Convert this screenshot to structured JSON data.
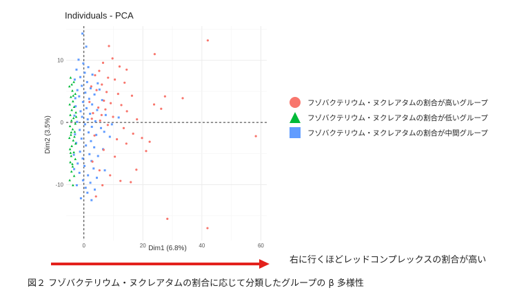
{
  "chart_data": {
    "type": "scatter",
    "title": "Individuals - PCA",
    "xlabel": "Dim1 (6.8%)",
    "ylabel": "Dim2 (3.5%)",
    "xlim": [
      -6,
      62
    ],
    "ylim": [
      -19,
      15.5
    ],
    "xticks": [
      0,
      20,
      40,
      60
    ],
    "yticks": [
      -10,
      0,
      10
    ],
    "grid": true,
    "reference_lines": {
      "x": 0,
      "y": 0
    },
    "legend_position": "right",
    "series": [
      {
        "name": "フゾバクテリウム・ヌクレアタムの割合が高いグループ",
        "marker": "circle",
        "color": "#F8766D",
        "points": [
          [
            42,
            13.2
          ],
          [
            24,
            11
          ],
          [
            8.5,
            12.3
          ],
          [
            9.7,
            10.3
          ],
          [
            6.5,
            9.6
          ],
          [
            12.1,
            9
          ],
          [
            14.5,
            8.5
          ],
          [
            5.2,
            8.3
          ],
          [
            3.8,
            7.6
          ],
          [
            8.2,
            7.2
          ],
          [
            10.5,
            6.9
          ],
          [
            13.8,
            6.4
          ],
          [
            6.1,
            6.1
          ],
          [
            2.5,
            5.8
          ],
          [
            4.3,
            5.2
          ],
          [
            7.7,
            4.9
          ],
          [
            11.6,
            4.6
          ],
          [
            16.3,
            4.3
          ],
          [
            27.5,
            4.2
          ],
          [
            33.5,
            3.9
          ],
          [
            6.8,
            3.5
          ],
          [
            1.9,
            3.3
          ],
          [
            9.1,
            3.1
          ],
          [
            12.7,
            2.8
          ],
          [
            23.8,
            2.9
          ],
          [
            4.9,
            2.4
          ],
          [
            7.3,
            2.1
          ],
          [
            14.6,
            1.8
          ],
          [
            26.2,
            2.2
          ],
          [
            3.1,
            1.5
          ],
          [
            6,
            1.2
          ],
          [
            9.9,
            0.9
          ],
          [
            18,
            0.5
          ],
          [
            2.7,
            0.6
          ],
          [
            5.5,
            0.3
          ],
          [
            8.1,
            -0.4
          ],
          [
            13.5,
            -0.9
          ],
          [
            58.3,
            -2.2
          ],
          [
            16.7,
            -1.8
          ],
          [
            19.7,
            -2.5
          ],
          [
            11.2,
            -2.7
          ],
          [
            22.3,
            -3.1
          ],
          [
            14.4,
            -3.4
          ],
          [
            3.6,
            -2.1
          ],
          [
            6.7,
            -4.4
          ],
          [
            21.1,
            -4.6
          ],
          [
            10.5,
            -5.5
          ],
          [
            2.9,
            -6.3
          ],
          [
            5.3,
            -7.7
          ],
          [
            17.8,
            -7.6
          ],
          [
            8.9,
            -8.5
          ],
          [
            12.4,
            -9.4
          ],
          [
            15.9,
            -9.6
          ],
          [
            6.3,
            -10.1
          ],
          [
            4.1,
            -11.9
          ],
          [
            28.3,
            -15.5
          ],
          [
            41.9,
            -17
          ]
        ]
      },
      {
        "name": "フゾバクテリウム・ヌクレアタムの割合が低いグループ",
        "marker": "triangle",
        "color": "#00BA38",
        "points": [
          [
            -4.5,
            7.2
          ],
          [
            -3.4,
            6.5
          ],
          [
            -4.9,
            5.8
          ],
          [
            -3.9,
            5.1
          ],
          [
            -2.9,
            4.6
          ],
          [
            -4.4,
            4.1
          ],
          [
            -3.7,
            3.4
          ],
          [
            -4.8,
            2.9
          ],
          [
            -3.3,
            2.5
          ],
          [
            -4.1,
            2
          ],
          [
            -2.7,
            1.6
          ],
          [
            -4.6,
            1.2
          ],
          [
            -3.5,
            0.7
          ],
          [
            -4.2,
            0.3
          ],
          [
            -2.9,
            -0.2
          ],
          [
            -4.7,
            -0.6
          ],
          [
            -3.8,
            -1.1
          ],
          [
            -3.1,
            -1.5
          ],
          [
            -4.4,
            -2
          ],
          [
            -4.9,
            -2.5
          ],
          [
            -3.6,
            -2.9
          ],
          [
            -2.8,
            -3.4
          ],
          [
            -4.1,
            -3.8
          ],
          [
            -4.7,
            -4.3
          ],
          [
            -3.4,
            -4.8
          ],
          [
            -4.3,
            -5.4
          ],
          [
            -2.9,
            -5.9
          ],
          [
            -4.6,
            -6.4
          ],
          [
            -3.8,
            -7.1
          ],
          [
            -4.2,
            -7.9
          ],
          [
            -3.3,
            -8.6
          ],
          [
            -4.8,
            -9.3
          ],
          [
            -3.7,
            -10.1
          ],
          [
            -4.1,
            6.1
          ],
          [
            -3.6,
            4.3
          ],
          [
            -4.3,
            -1.6
          ],
          [
            -3.2,
            -2.3
          ],
          [
            -2.6,
            0.9
          ],
          [
            -4.5,
            -4.9
          ],
          [
            -3.9,
            -6.7
          ]
        ]
      },
      {
        "name": "フゾバクテリウム・ヌクレアタムの割合が中間グループ",
        "marker": "square",
        "color": "#619CFF",
        "points": [
          [
            -0.5,
            14.3
          ],
          [
            0.8,
            12.2
          ],
          [
            -1.8,
            10.1
          ],
          [
            -0.2,
            9.5
          ],
          [
            1.5,
            8.9
          ],
          [
            -2.5,
            8.5
          ],
          [
            0.3,
            8
          ],
          [
            2.9,
            7.7
          ],
          [
            -1.2,
            7.3
          ],
          [
            -3.1,
            6.9
          ],
          [
            1.1,
            6.5
          ],
          [
            4.7,
            6.3
          ],
          [
            -0.7,
            5.9
          ],
          [
            2.3,
            5.5
          ],
          [
            -2.2,
            5.2
          ],
          [
            0.5,
            4.8
          ],
          [
            3.6,
            4.5
          ],
          [
            -1.6,
            4.2
          ],
          [
            1.8,
            3.8
          ],
          [
            6.2,
            3.6
          ],
          [
            -0.3,
            3.3
          ],
          [
            2.8,
            2.9
          ],
          [
            -2.8,
            2.6
          ],
          [
            0.9,
            2.3
          ],
          [
            4.5,
            2
          ],
          [
            -1.1,
            1.8
          ],
          [
            2.1,
            1.4
          ],
          [
            7.4,
            1.2
          ],
          [
            -0.6,
            0.9
          ],
          [
            1.3,
            0.5
          ],
          [
            3.9,
            0.2
          ],
          [
            -2.3,
            0.1
          ],
          [
            0.4,
            -0.3
          ],
          [
            2.7,
            -0.7
          ],
          [
            5.8,
            -0.9
          ],
          [
            -1.4,
            -1.2
          ],
          [
            1.6,
            -1.6
          ],
          [
            4.2,
            -2
          ],
          [
            8.8,
            -2.3
          ],
          [
            -0.8,
            -2.6
          ],
          [
            2.4,
            -3
          ],
          [
            -2.6,
            -3.3
          ],
          [
            0.7,
            -3.7
          ],
          [
            3.5,
            -4
          ],
          [
            6.5,
            -4.3
          ],
          [
            -1.3,
            -4.7
          ],
          [
            1.9,
            -5.1
          ],
          [
            4.8,
            -5.4
          ],
          [
            -0.4,
            -5.8
          ],
          [
            2.6,
            -6.2
          ],
          [
            -2.1,
            -6.6
          ],
          [
            0.2,
            -7
          ],
          [
            3.3,
            -7.4
          ],
          [
            7.1,
            -7.7
          ],
          [
            -1.5,
            -8.1
          ],
          [
            1.4,
            -8.5
          ],
          [
            4.4,
            -8.9
          ],
          [
            -0.3,
            -9.3
          ],
          [
            2.2,
            -9.7
          ],
          [
            -2.4,
            -10.1
          ],
          [
            0.6,
            -10.5
          ],
          [
            3.7,
            -10.8
          ],
          [
            1.2,
            -11.3
          ],
          [
            -1,
            -12.2
          ],
          [
            2.6,
            -12.5
          ],
          [
            -3.2,
            1.1
          ],
          [
            -3,
            -1.9
          ],
          [
            -3.4,
            -5.2
          ],
          [
            -2.9,
            3.9
          ],
          [
            -3.3,
            -7.5
          ],
          [
            5.3,
            5.3
          ],
          [
            6.9,
            -1.5
          ],
          [
            9.5,
            -0.3
          ],
          [
            11.8,
            0.8
          ]
        ]
      }
    ]
  },
  "annotations": {
    "arrow_text": "右に行くほどレッドコンプレックスの割合が高い",
    "arrow_color": "#E3211C"
  },
  "caption": "図２ フゾバクテリウム・ヌクレアタムの割合に応じて分類したグループの β 多様性"
}
